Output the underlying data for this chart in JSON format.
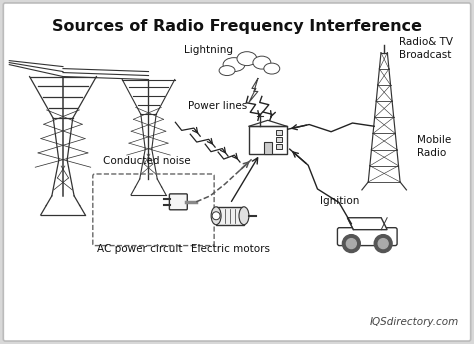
{
  "title": "Sources of Radio Frequency Interference",
  "bg_color": "#d8d8d8",
  "panel_color": "#f0f0f0",
  "border_color": "#bbbbbb",
  "text_color": "#111111",
  "title_fontsize": 11.5,
  "label_fontsize": 7.5,
  "watermark": "IQSdirectory.com",
  "labels": {
    "power_lines": "Power lines",
    "lightning": "Lightning",
    "radio_tv": "Radio& TV\nBroadcast",
    "mobile_radio": "Mobile\nRadio",
    "ignition": "Ignition",
    "electric_motors": "Electric motors",
    "conducted_noise": "Conducted noise",
    "ac_power": "AC power circuit"
  },
  "line_color": "#333333",
  "dashed_color": "#555555",
  "arrow_color": "#222222"
}
